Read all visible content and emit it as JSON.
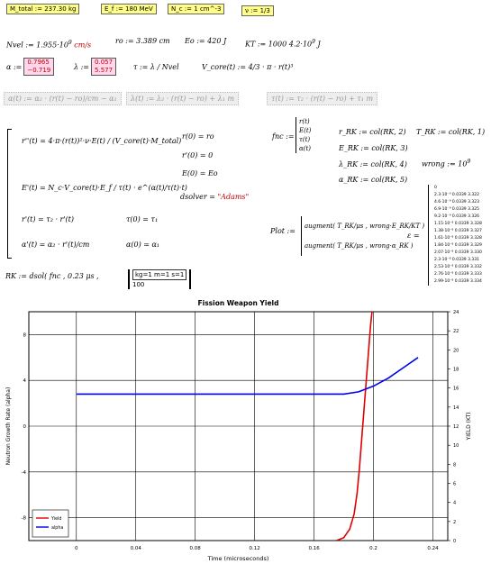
{
  "top": {
    "mtotal": "M_total := 237.30 kg",
    "ef": "E_f := 180 MeV",
    "nc": "N_c := 1 cm^-3",
    "nu": "ν := 1/3"
  },
  "row2": {
    "nvel": "Nvel := 1.955·10",
    "nvel_exp": "9",
    "nvel_unit": "cm/s",
    "ro": "ro := 3.389 cm",
    "eo": "Eo := 420 J",
    "kt": "KT := 1000 4.2·10",
    "kt_exp": "9",
    "kt_unit": "J"
  },
  "row3": {
    "alpha_label": "α :=",
    "alpha_values": [
      "0.7965",
      "−0.719"
    ],
    "lambda_label": "λ :=",
    "lambda_values": [
      "0.057",
      "5.577"
    ],
    "tau": "τ := λ / Nvel",
    "vcore": "V_core(t) := 4/3 · π · r(t)³"
  },
  "row4": {
    "alpha_fn": "α(t) := α₂ · (r(t) − ro)/cm − α₁",
    "lambda_fn": "λ(t) := λ₂ · (r(t) − ro) + λ₁ m",
    "tau_fn": "τ(t) := τ₂ · (r(t) − ro) + τ₁ m"
  },
  "solve": {
    "eq1": "r''(t) = 4·π·(r(t))²·ν·E(t) / (V_core(t)·M_total)",
    "eq2": "E'(t) = N_c·V_core(t)·E_f / τ(t) · e^(α(t)/τ(t)·t)",
    "eq3": "r'(t) = τ₂ · r'(t)",
    "eq4": "α'(t) = α₂ · r'(t)/cm",
    "ic1": "r(0) = ro",
    "ic2": "r'(0) = 0",
    "ic3": "E(0) = Eo",
    "ic4": "τ(0) = τ₁",
    "ic5": "α(0) = α₁",
    "dsolver_label": "dsolver =",
    "dsolver_value": "\"Adams\""
  },
  "fnc": {
    "label": "fnc :=",
    "vector": [
      "r(t)",
      "E(t)",
      "τ(t)",
      "α(t)"
    ]
  },
  "cols": {
    "r": "r_RK := col(RK, 2)",
    "e": "E_RK := col(RK, 3)",
    "l": "λ_RK := col(RK, 4)",
    "a": "α_RK := col(RK, 5)",
    "t": "T_RK := col(RK, 1)",
    "wrong": "wrong := 10",
    "wrong_exp": "9"
  },
  "plot": {
    "label": "Plot :=",
    "aug1": "augment( T_RK/μs , wrong·E_RK/KT )",
    "aug2": "augment( T_RK/μs , wrong·α_RK )"
  },
  "rk": {
    "label": "RK := dsol( fnc , 0.23 μs ,",
    "matrix_top": "kg=1 m=1 s=1",
    "matrix_bottom": "100"
  },
  "table": {
    "label": "ε =",
    "rows": [
      "0",
      "2.3·10⁻⁹ 0.0339 3.322",
      "4.6·10⁻⁹ 0.0339 3.323",
      "6.9·10⁻⁹ 0.0339 3.325",
      "9.2·10⁻⁹ 0.0339 3.326",
      "1.15·10⁻⁸ 0.0339 3.328",
      "1.38·10⁻⁸ 0.0339 3.327",
      "1.61·10⁻⁸ 0.0339 3.328",
      "1.84·10⁻⁸ 0.0339 3.329",
      "2.07·10⁻⁸ 0.0339 3.330",
      "2.3·10⁻⁸ 0.0339 3.331",
      "2.53·10⁻⁸ 0.0339 3.332",
      "2.76·10⁻⁸ 0.0339 3.333",
      "2.99·10⁻⁸ 0.0339 3.334"
    ]
  },
  "chart_data": {
    "type": "line",
    "title": "Fission Weapon Yield",
    "xlabel": "Time (microseconds)",
    "ylabel": "Neutron Growth Rate (alpha)",
    "y2label": "YIELD (KT)",
    "xlim": [
      -0.032,
      0.25
    ],
    "ylim": [
      -10,
      10
    ],
    "y2lim": [
      0,
      24
    ],
    "xticks": [
      0,
      0.04,
      0.08,
      0.12,
      0.16,
      0.2,
      0.24
    ],
    "xtick_labels": [
      "0",
      "0.04",
      "0.08",
      "0.12",
      "0.16",
      "0.2",
      "0.24"
    ],
    "yticks": [
      8,
      4,
      0,
      -4,
      -8
    ],
    "ytick_labels": [
      "8",
      "4",
      "0",
      "-4",
      "-8"
    ],
    "y2ticks": [
      24,
      22,
      20,
      18,
      16,
      14,
      12,
      10,
      8,
      6,
      4,
      2,
      0
    ],
    "y2tick_labels": [
      "24",
      "22",
      "20",
      "18",
      "16",
      "14",
      "12",
      "10",
      "8",
      "6",
      "4",
      "2",
      "0"
    ],
    "grid": true,
    "legend_position": "bottom-left",
    "series": [
      {
        "name": "Yield",
        "color": "#e00000",
        "axis": "y2",
        "x": [
          0.175,
          0.18,
          0.184,
          0.187,
          0.189,
          0.1905,
          0.192,
          0.1935,
          0.195,
          0.1965,
          0.198,
          0.199
        ],
        "y": [
          0,
          0.3,
          1.2,
          2.8,
          5,
          7.5,
          10.5,
          13.5,
          16.5,
          19.5,
          22.5,
          24
        ]
      },
      {
        "name": "alpha",
        "color": "#0000ee",
        "axis": "y",
        "x": [
          0,
          0.04,
          0.08,
          0.12,
          0.16,
          0.18,
          0.19,
          0.2,
          0.21,
          0.22,
          0.23
        ],
        "y": [
          2.8,
          2.8,
          2.8,
          2.8,
          2.8,
          2.8,
          3.0,
          3.5,
          4.2,
          5.1,
          6.0
        ]
      }
    ]
  }
}
